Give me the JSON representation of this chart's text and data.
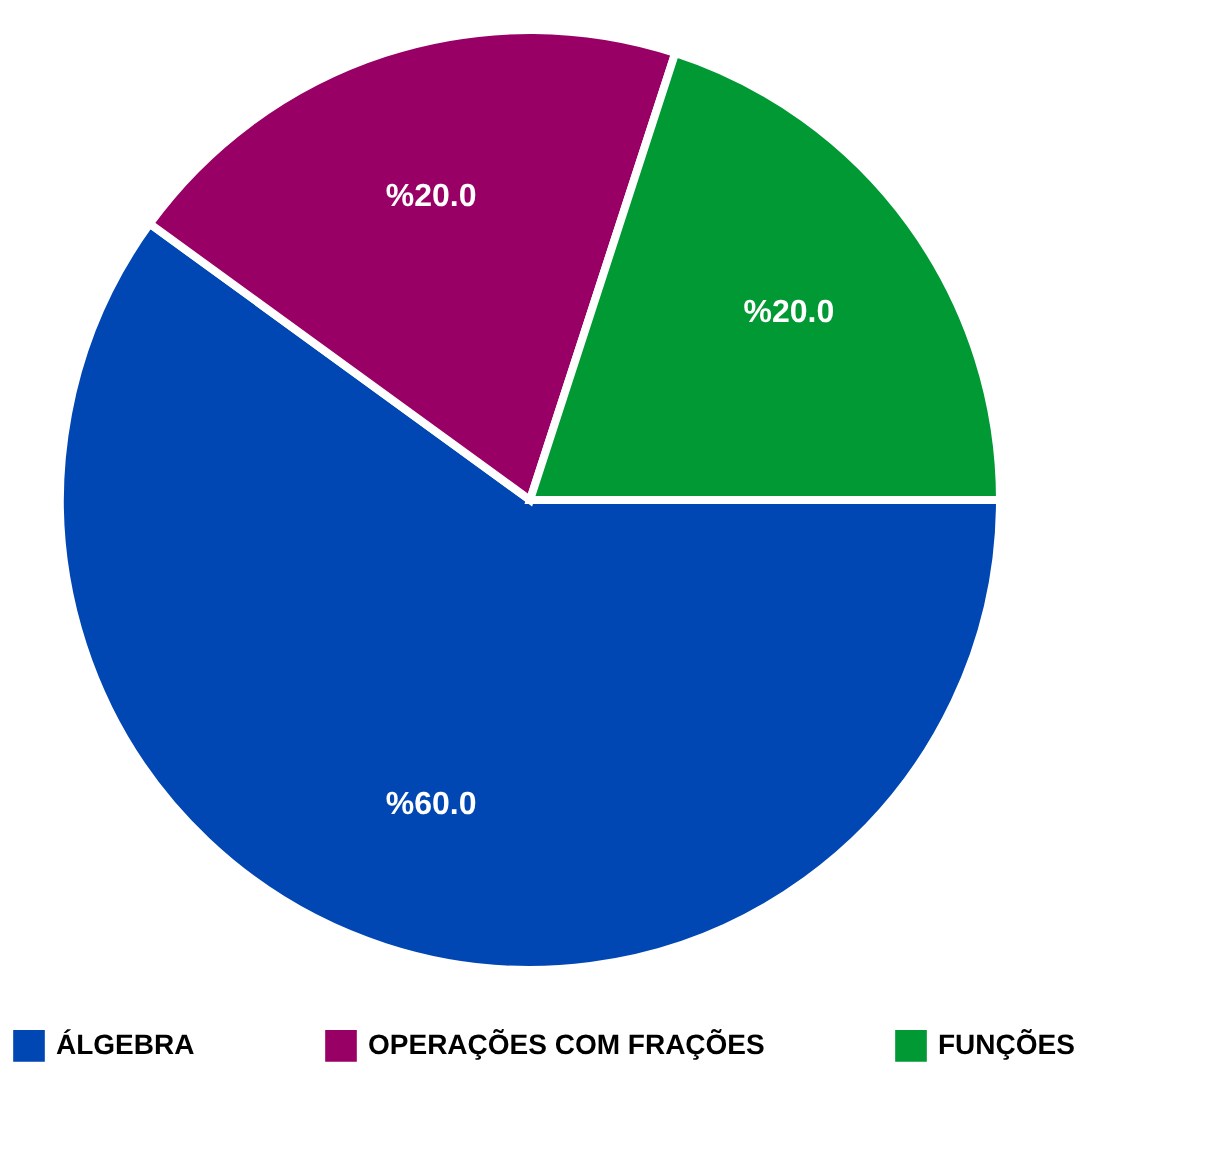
{
  "chart_data": {
    "type": "pie",
    "categories": [
      "ÁLGEBRA",
      "OPERAÇÕES COM FRAÇÕES",
      "FUNÇÕES"
    ],
    "values": [
      60,
      20,
      20
    ],
    "colors": [
      "#0047b3",
      "#990066",
      "#009933"
    ],
    "value_labels": [
      "%60.0",
      "%20.0",
      "%20.0"
    ],
    "legend": "bottom"
  }
}
